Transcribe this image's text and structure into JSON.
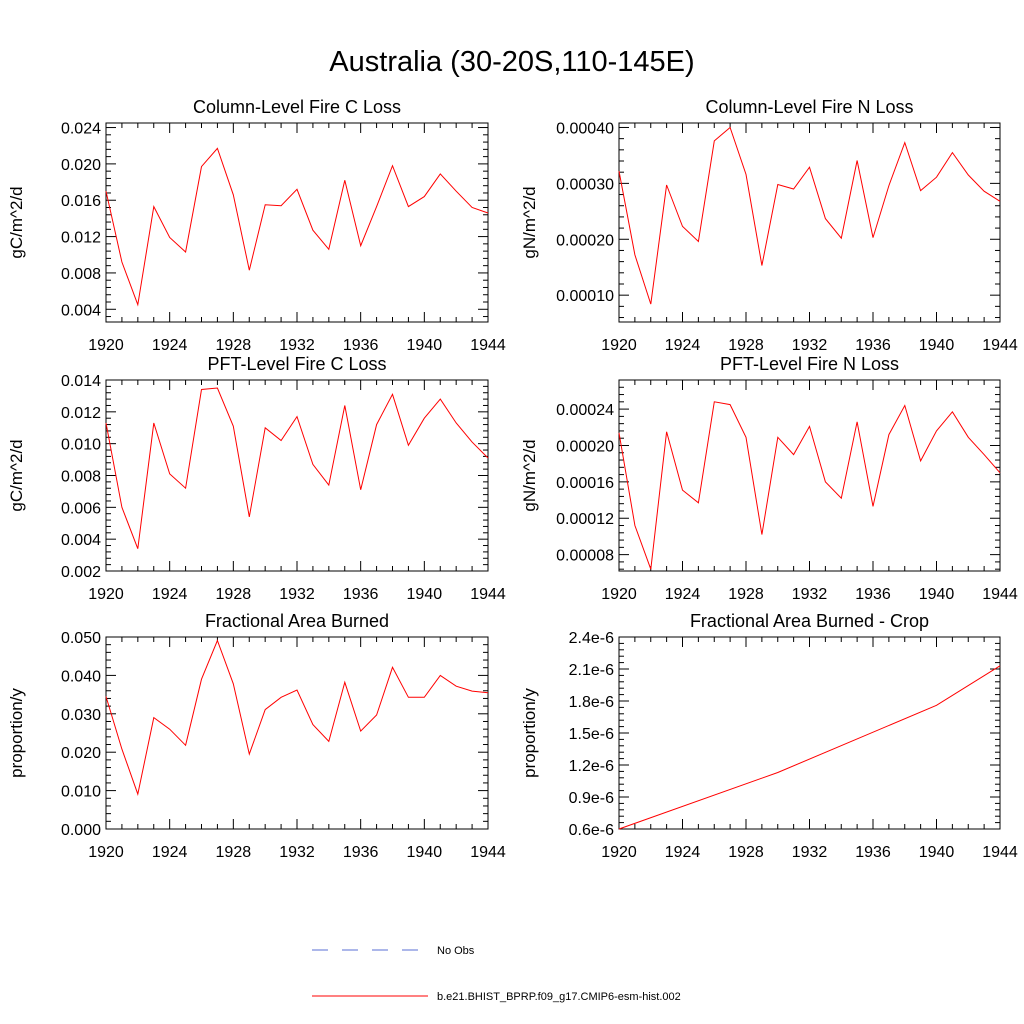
{
  "figure": {
    "title": "Australia (30-20S,110-145E)"
  },
  "legend": [
    {
      "label": "No Obs",
      "style": "dashed",
      "color": "#5a6fd6"
    },
    {
      "label": "b.e21.BHIST_BPRP.f09_g17.CMIP6-esm-hist.002",
      "style": "solid",
      "color": "#ff0000"
    }
  ],
  "chart_data": [
    {
      "type": "line",
      "title": "Column-Level Fire C Loss",
      "xlabel": "",
      "ylabel": "gC/m^2/d",
      "xlim": [
        1920,
        1944
      ],
      "ylim": [
        0.0026,
        0.0245
      ],
      "xticks": [
        1920,
        1924,
        1928,
        1932,
        1936,
        1940,
        1944
      ],
      "xtick_labels": [
        "1920",
        "1924",
        "1928",
        "1932",
        "1936",
        "1940",
        "1944"
      ],
      "yticks": [
        0.004,
        0.008,
        0.012,
        0.016,
        0.02,
        0.024
      ],
      "ytick_labels": [
        "0.004",
        "0.008",
        "0.012",
        "0.016",
        "0.020",
        "0.024"
      ],
      "series": [
        {
          "color": "#ff0000",
          "x": [
            1920,
            1921,
            1922,
            1923,
            1924,
            1925,
            1926,
            1927,
            1928,
            1929,
            1930,
            1931,
            1932,
            1933,
            1934,
            1935,
            1936,
            1937,
            1938,
            1939,
            1940,
            1941,
            1942,
            1943,
            1944
          ],
          "y": [
            0.017,
            0.0092,
            0.0045,
            0.0153,
            0.0119,
            0.0103,
            0.0197,
            0.0217,
            0.0166,
            0.0083,
            0.0155,
            0.0154,
            0.0172,
            0.0127,
            0.0106,
            0.0182,
            0.011,
            0.0153,
            0.0198,
            0.0153,
            0.0164,
            0.0189,
            0.017,
            0.0152,
            0.0146
          ]
        }
      ]
    },
    {
      "type": "line",
      "title": "Column-Level Fire N Loss",
      "xlabel": "",
      "ylabel": "gN/m^2/d",
      "xlim": [
        1920,
        1944
      ],
      "ylim": [
        5.2e-05,
        0.000408
      ],
      "xticks": [
        1920,
        1924,
        1928,
        1932,
        1936,
        1940,
        1944
      ],
      "xtick_labels": [
        "1920",
        "1924",
        "1928",
        "1932",
        "1936",
        "1940",
        "1944"
      ],
      "yticks": [
        0.0001,
        0.0002,
        0.0003,
        0.0004
      ],
      "ytick_labels": [
        "0.00010",
        "0.00020",
        "0.00030",
        "0.00040"
      ],
      "series": [
        {
          "color": "#ff0000",
          "x": [
            1920,
            1921,
            1922,
            1923,
            1924,
            1925,
            1926,
            1927,
            1928,
            1929,
            1930,
            1931,
            1932,
            1933,
            1934,
            1935,
            1936,
            1937,
            1938,
            1939,
            1940,
            1941,
            1942,
            1943,
            1944
          ],
          "y": [
            0.000322,
            0.000172,
            8.4e-05,
            0.000297,
            0.000223,
            0.000196,
            0.000376,
            0.0004,
            0.000316,
            0.000153,
            0.000298,
            0.00029,
            0.000329,
            0.000237,
            0.000202,
            0.000341,
            0.000203,
            0.000296,
            0.000373,
            0.000287,
            0.000311,
            0.000355,
            0.000315,
            0.000286,
            0.000268
          ]
        }
      ]
    },
    {
      "type": "line",
      "title": "PFT-Level Fire C Loss",
      "xlabel": "",
      "ylabel": "gC/m^2/d",
      "xlim": [
        1920,
        1944
      ],
      "ylim": [
        0.002,
        0.014
      ],
      "xticks": [
        1920,
        1924,
        1928,
        1932,
        1936,
        1940,
        1944
      ],
      "xtick_labels": [
        "1920",
        "1924",
        "1928",
        "1932",
        "1936",
        "1940",
        "1944"
      ],
      "yticks": [
        0.002,
        0.004,
        0.006,
        0.008,
        0.01,
        0.012,
        0.014
      ],
      "ytick_labels": [
        "0.002",
        "0.004",
        "0.006",
        "0.008",
        "0.010",
        "0.012",
        "0.014"
      ],
      "series": [
        {
          "color": "#ff0000",
          "x": [
            1920,
            1921,
            1922,
            1923,
            1924,
            1925,
            1926,
            1927,
            1928,
            1929,
            1930,
            1931,
            1932,
            1933,
            1934,
            1935,
            1936,
            1937,
            1938,
            1939,
            1940,
            1941,
            1942,
            1943,
            1944
          ],
          "y": [
            0.0113,
            0.006,
            0.0034,
            0.0113,
            0.0081,
            0.0072,
            0.0134,
            0.0135,
            0.0111,
            0.0054,
            0.011,
            0.0102,
            0.0117,
            0.0087,
            0.0074,
            0.0124,
            0.0071,
            0.0112,
            0.0131,
            0.0099,
            0.0116,
            0.0128,
            0.0113,
            0.0101,
            0.0091
          ]
        }
      ]
    },
    {
      "type": "line",
      "title": "PFT-Level Fire N Loss",
      "xlabel": "",
      "ylabel": "gN/m^2/d",
      "xlim": [
        1920,
        1944
      ],
      "ylim": [
        6.2e-05,
        0.000272
      ],
      "xticks": [
        1920,
        1924,
        1928,
        1932,
        1936,
        1940,
        1944
      ],
      "xtick_labels": [
        "1920",
        "1924",
        "1928",
        "1932",
        "1936",
        "1940",
        "1944"
      ],
      "yticks": [
        8e-05,
        0.00012,
        0.00016,
        0.0002,
        0.00024
      ],
      "ytick_labels": [
        "0.00008",
        "0.00012",
        "0.00016",
        "0.00020",
        "0.00024"
      ],
      "series": [
        {
          "color": "#ff0000",
          "x": [
            1920,
            1921,
            1922,
            1923,
            1924,
            1925,
            1926,
            1927,
            1928,
            1929,
            1930,
            1931,
            1932,
            1933,
            1934,
            1935,
            1936,
            1937,
            1938,
            1939,
            1940,
            1941,
            1942,
            1943,
            1944
          ],
          "y": [
            0.000214,
            0.000112,
            6.4e-05,
            0.000215,
            0.000151,
            0.000137,
            0.000248,
            0.000245,
            0.000209,
            0.000102,
            0.000209,
            0.00019,
            0.000221,
            0.00016,
            0.000142,
            0.000226,
            0.000133,
            0.000212,
            0.000244,
            0.000183,
            0.000216,
            0.000237,
            0.000209,
            0.00019,
            0.00017
          ]
        }
      ]
    },
    {
      "type": "line",
      "title": "Fractional Area Burned",
      "xlabel": "",
      "ylabel": "proportion/y",
      "xlim": [
        1920,
        1944
      ],
      "ylim": [
        0.0,
        0.05
      ],
      "xticks": [
        1920,
        1924,
        1928,
        1932,
        1936,
        1940,
        1944
      ],
      "xtick_labels": [
        "1920",
        "1924",
        "1928",
        "1932",
        "1936",
        "1940",
        "1944"
      ],
      "yticks": [
        0.0,
        0.01,
        0.02,
        0.03,
        0.04,
        0.05
      ],
      "ytick_labels": [
        "0.000",
        "0.010",
        "0.020",
        "0.030",
        "0.040",
        "0.050"
      ],
      "series": [
        {
          "color": "#ff0000",
          "x": [
            1920,
            1921,
            1922,
            1923,
            1924,
            1925,
            1926,
            1927,
            1928,
            1929,
            1930,
            1931,
            1932,
            1933,
            1934,
            1935,
            1936,
            1937,
            1938,
            1939,
            1940,
            1941,
            1942,
            1943,
            1944
          ],
          "y": [
            0.0345,
            0.0208,
            0.0091,
            0.029,
            0.026,
            0.0218,
            0.039,
            0.0491,
            0.0378,
            0.0195,
            0.0311,
            0.0343,
            0.0362,
            0.0272,
            0.0228,
            0.0382,
            0.0255,
            0.0297,
            0.0421,
            0.0343,
            0.0343,
            0.04,
            0.0372,
            0.0359,
            0.0355
          ]
        }
      ]
    },
    {
      "type": "line",
      "title": "Fractional Area Burned - Crop",
      "xlabel": "",
      "ylabel": "proportion/y",
      "xlim": [
        1920,
        1944
      ],
      "ylim": [
        6e-07,
        2.4e-06
      ],
      "xticks": [
        1920,
        1924,
        1928,
        1932,
        1936,
        1940,
        1944
      ],
      "xtick_labels": [
        "1920",
        "1924",
        "1928",
        "1932",
        "1936",
        "1940",
        "1944"
      ],
      "yticks": [
        6e-07,
        9e-07,
        1.2e-06,
        1.5e-06,
        1.8e-06,
        2.1e-06,
        2.4e-06
      ],
      "ytick_labels": [
        "0.6e-6",
        "0.9e-6",
        "1.2e-6",
        "1.5e-6",
        "1.8e-6",
        "2.1e-6",
        "2.4e-6"
      ],
      "series": [
        {
          "color": "#ff0000",
          "x": [
            1920,
            1930,
            1940,
            1944
          ],
          "y": [
            6e-07,
            1.13e-06,
            1.76e-06,
            2.13e-06
          ]
        }
      ]
    }
  ]
}
